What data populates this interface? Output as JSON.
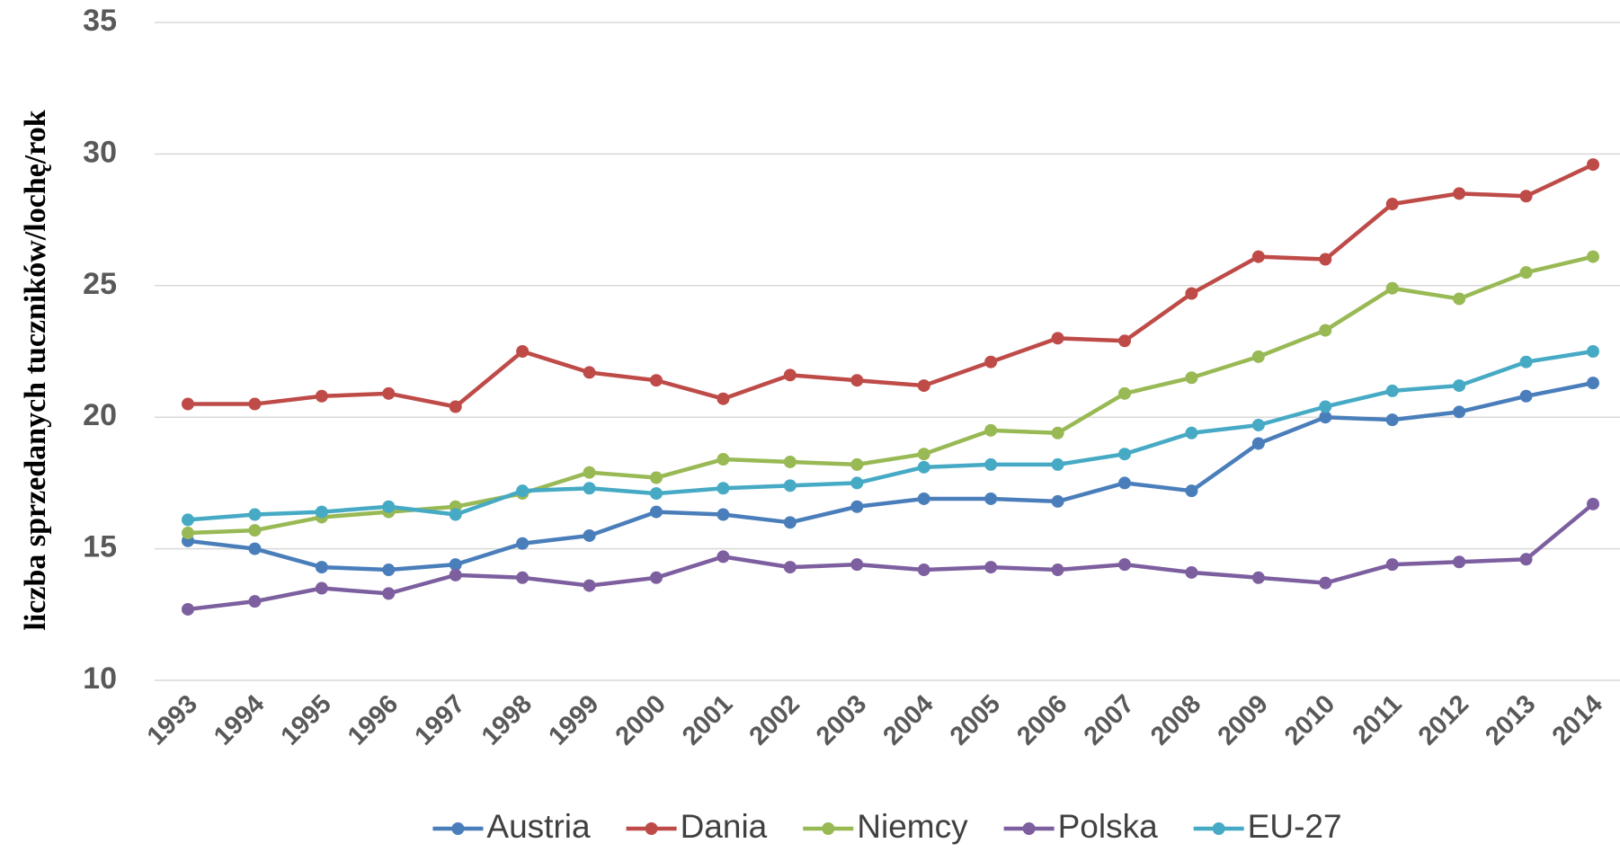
{
  "chart_data": {
    "type": "line",
    "y_label": "liczba sprzedanych tuczników/lochę/rok",
    "categories": [
      "1993",
      "1994",
      "1995",
      "1996",
      "1997",
      "1998",
      "1999",
      "2000",
      "2001",
      "2002",
      "2003",
      "2004",
      "2005",
      "2006",
      "2007",
      "2008",
      "2009",
      "2010",
      "2011",
      "2012",
      "2013",
      "2014"
    ],
    "series": [
      {
        "name": "Austria",
        "color": "#4a7ebb",
        "values": [
          15.3,
          15.0,
          14.3,
          14.2,
          14.4,
          15.2,
          15.5,
          16.4,
          16.3,
          16.0,
          16.6,
          16.9,
          16.9,
          16.8,
          17.5,
          17.2,
          19.0,
          20.0,
          19.9,
          20.2,
          20.8,
          21.3
        ]
      },
      {
        "name": "Dania",
        "color": "#be4b48",
        "values": [
          20.5,
          20.5,
          20.8,
          20.9,
          20.4,
          22.5,
          21.7,
          21.4,
          20.7,
          21.6,
          21.4,
          21.2,
          22.1,
          23.0,
          22.9,
          24.7,
          26.1,
          26.0,
          28.1,
          28.5,
          28.4,
          29.6
        ]
      },
      {
        "name": "Niemcy",
        "color": "#98b954",
        "values": [
          15.6,
          15.7,
          16.2,
          16.4,
          16.6,
          17.1,
          17.9,
          17.7,
          18.4,
          18.3,
          18.2,
          18.6,
          19.5,
          19.4,
          20.9,
          21.5,
          22.3,
          23.3,
          24.9,
          24.5,
          25.5,
          26.1
        ]
      },
      {
        "name": "Polska",
        "color": "#7d5fa0",
        "values": [
          12.7,
          13.0,
          13.5,
          13.3,
          14.0,
          13.9,
          13.6,
          13.9,
          14.7,
          14.3,
          14.4,
          14.2,
          14.3,
          14.2,
          14.4,
          14.1,
          13.9,
          13.7,
          14.4,
          14.5,
          14.6,
          16.7
        ]
      },
      {
        "name": "EU-27",
        "color": "#46aac5",
        "values": [
          16.1,
          16.3,
          16.4,
          16.6,
          16.3,
          17.2,
          17.3,
          17.1,
          17.3,
          17.4,
          17.5,
          18.1,
          18.2,
          18.2,
          18.6,
          19.4,
          19.7,
          20.4,
          21.0,
          21.2,
          22.1,
          22.5
        ]
      }
    ],
    "ylim": [
      10,
      35
    ],
    "yticks": [
      10,
      15,
      20,
      25,
      30,
      35
    ],
    "grid": true
  }
}
